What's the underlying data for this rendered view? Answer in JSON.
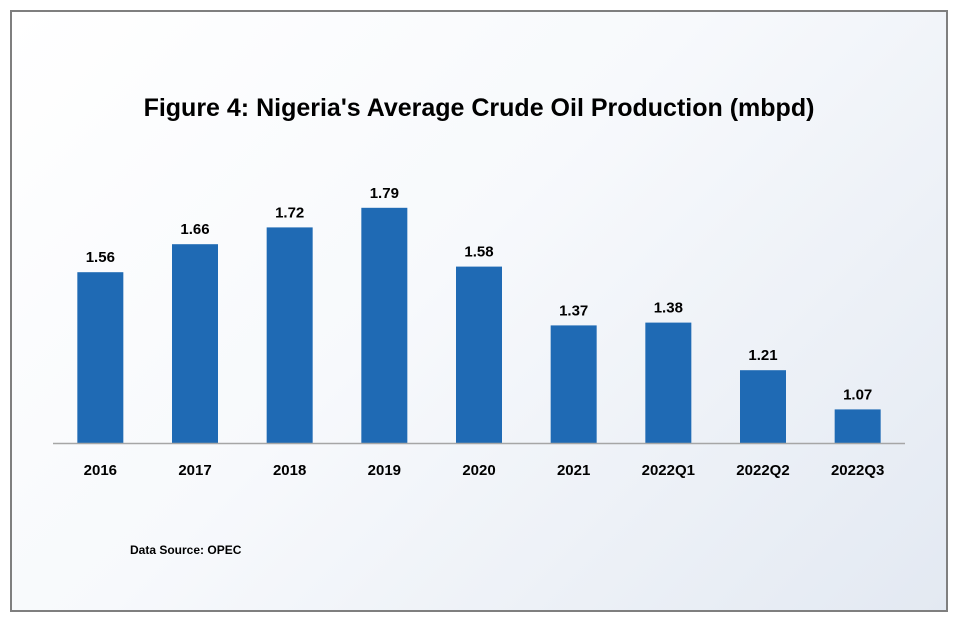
{
  "chart_data": {
    "type": "bar",
    "title": "Figure 4: Nigeria's Average Crude Oil Production (mbpd)",
    "categories": [
      "2016",
      "2017",
      "2018",
      "2019",
      "2020",
      "2021",
      "2022Q1",
      "2022Q2",
      "2022Q3"
    ],
    "values": [
      1.56,
      1.66,
      1.72,
      1.79,
      1.58,
      1.37,
      1.38,
      1.21,
      1.07
    ],
    "data_labels": [
      "1.56",
      "1.66",
      "1.72",
      "1.79",
      "1.58",
      "1.37",
      "1.38",
      "1.21",
      "1.07"
    ],
    "ylim": [
      0.95,
      1.79
    ],
    "grid": false,
    "legend": "none",
    "bar_color": "#1f6ab4",
    "axis_color": "#a6a6a6"
  },
  "source_note": "Data Source: OPEC"
}
